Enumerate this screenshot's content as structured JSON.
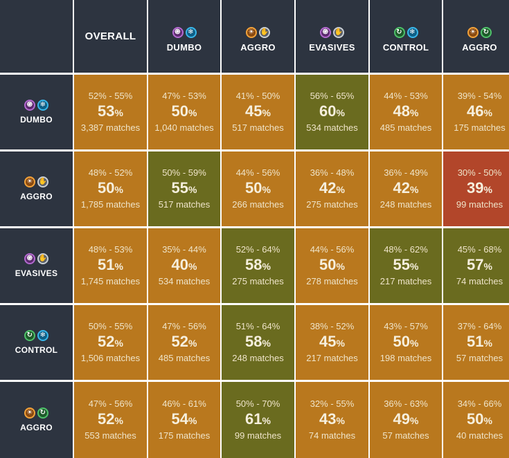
{
  "header": {
    "overall_label": "OVERALL",
    "columns": [
      {
        "label": "DUMBO",
        "icons": [
          "purple-spiral-icon",
          "cyan-snowflake-icon"
        ]
      },
      {
        "label": "AGGRO",
        "icons": [
          "orange-sun-icon",
          "silver-hand-icon"
        ]
      },
      {
        "label": "EVASIVES",
        "icons": [
          "purple-spiral-icon",
          "silver-hand-icon"
        ]
      },
      {
        "label": "CONTROL",
        "icons": [
          "green-swirl-icon",
          "cyan-snowflake-icon"
        ]
      },
      {
        "label": "AGGRO",
        "icons": [
          "orange-sun-icon",
          "green-swirl-icon"
        ]
      }
    ]
  },
  "rows": [
    {
      "label": "DUMBO",
      "icons": [
        "purple-spiral-icon",
        "cyan-snowflake-icon"
      ],
      "overall": {
        "range": "52% - 55%",
        "value": "53",
        "matches": "3,387 matches"
      },
      "cells": [
        {
          "range": "47% - 53%",
          "value": "50",
          "matches": "1,040 matches",
          "tone": "orange"
        },
        {
          "range": "41% - 50%",
          "value": "45",
          "matches": "517 matches",
          "tone": "orange"
        },
        {
          "range": "56% - 65%",
          "value": "60",
          "matches": "534 matches",
          "tone": "olive"
        },
        {
          "range": "44% - 53%",
          "value": "48",
          "matches": "485 matches",
          "tone": "orange"
        },
        {
          "range": "39% - 54%",
          "value": "46",
          "matches": "175 matches",
          "tone": "orange"
        }
      ]
    },
    {
      "label": "AGGRO",
      "icons": [
        "orange-sun-icon",
        "silver-hand-icon"
      ],
      "overall": {
        "range": "48% - 52%",
        "value": "50",
        "matches": "1,785 matches"
      },
      "cells": [
        {
          "range": "50% - 59%",
          "value": "55",
          "matches": "517 matches",
          "tone": "olive"
        },
        {
          "range": "44% - 56%",
          "value": "50",
          "matches": "266 matches",
          "tone": "orange"
        },
        {
          "range": "36% - 48%",
          "value": "42",
          "matches": "275 matches",
          "tone": "orange"
        },
        {
          "range": "36% - 49%",
          "value": "42",
          "matches": "248 matches",
          "tone": "orange"
        },
        {
          "range": "30% - 50%",
          "value": "39",
          "matches": "99 matches",
          "tone": "red"
        }
      ]
    },
    {
      "label": "EVASIVES",
      "icons": [
        "purple-spiral-icon",
        "silver-hand-icon"
      ],
      "overall": {
        "range": "48% - 53%",
        "value": "51",
        "matches": "1,745 matches"
      },
      "cells": [
        {
          "range": "35% - 44%",
          "value": "40",
          "matches": "534 matches",
          "tone": "orange"
        },
        {
          "range": "52% - 64%",
          "value": "58",
          "matches": "275 matches",
          "tone": "olive"
        },
        {
          "range": "44% - 56%",
          "value": "50",
          "matches": "278 matches",
          "tone": "orange"
        },
        {
          "range": "48% - 62%",
          "value": "55",
          "matches": "217 matches",
          "tone": "olive"
        },
        {
          "range": "45% - 68%",
          "value": "57",
          "matches": "74 matches",
          "tone": "olive"
        }
      ]
    },
    {
      "label": "CONTROL",
      "icons": [
        "green-swirl-icon",
        "cyan-snowflake-icon"
      ],
      "overall": {
        "range": "50% - 55%",
        "value": "52",
        "matches": "1,506 matches"
      },
      "cells": [
        {
          "range": "47% - 56%",
          "value": "52",
          "matches": "485 matches",
          "tone": "orange"
        },
        {
          "range": "51% - 64%",
          "value": "58",
          "matches": "248 matches",
          "tone": "olive"
        },
        {
          "range": "38% - 52%",
          "value": "45",
          "matches": "217 matches",
          "tone": "orange"
        },
        {
          "range": "43% - 57%",
          "value": "50",
          "matches": "198 matches",
          "tone": "orange"
        },
        {
          "range": "37% - 64%",
          "value": "51",
          "matches": "57 matches",
          "tone": "orange"
        }
      ]
    },
    {
      "label": "AGGRO",
      "icons": [
        "orange-sun-icon",
        "green-swirl-icon"
      ],
      "overall": {
        "range": "47% - 56%",
        "value": "52",
        "matches": "553 matches"
      },
      "cells": [
        {
          "range": "46% - 61%",
          "value": "54",
          "matches": "175 matches",
          "tone": "orange"
        },
        {
          "range": "50% - 70%",
          "value": "61",
          "matches": "99 matches",
          "tone": "olive"
        },
        {
          "range": "32% - 55%",
          "value": "43",
          "matches": "74 matches",
          "tone": "orange"
        },
        {
          "range": "36% - 63%",
          "value": "49",
          "matches": "57 matches",
          "tone": "orange"
        },
        {
          "range": "34% - 66%",
          "value": "50",
          "matches": "40 matches",
          "tone": "orange"
        }
      ]
    }
  ],
  "percent_sign": "%",
  "colors": {
    "orange": "#b9781e",
    "olive": "#6a6b1f",
    "red": "#b2462a",
    "header": "#2d3440"
  }
}
